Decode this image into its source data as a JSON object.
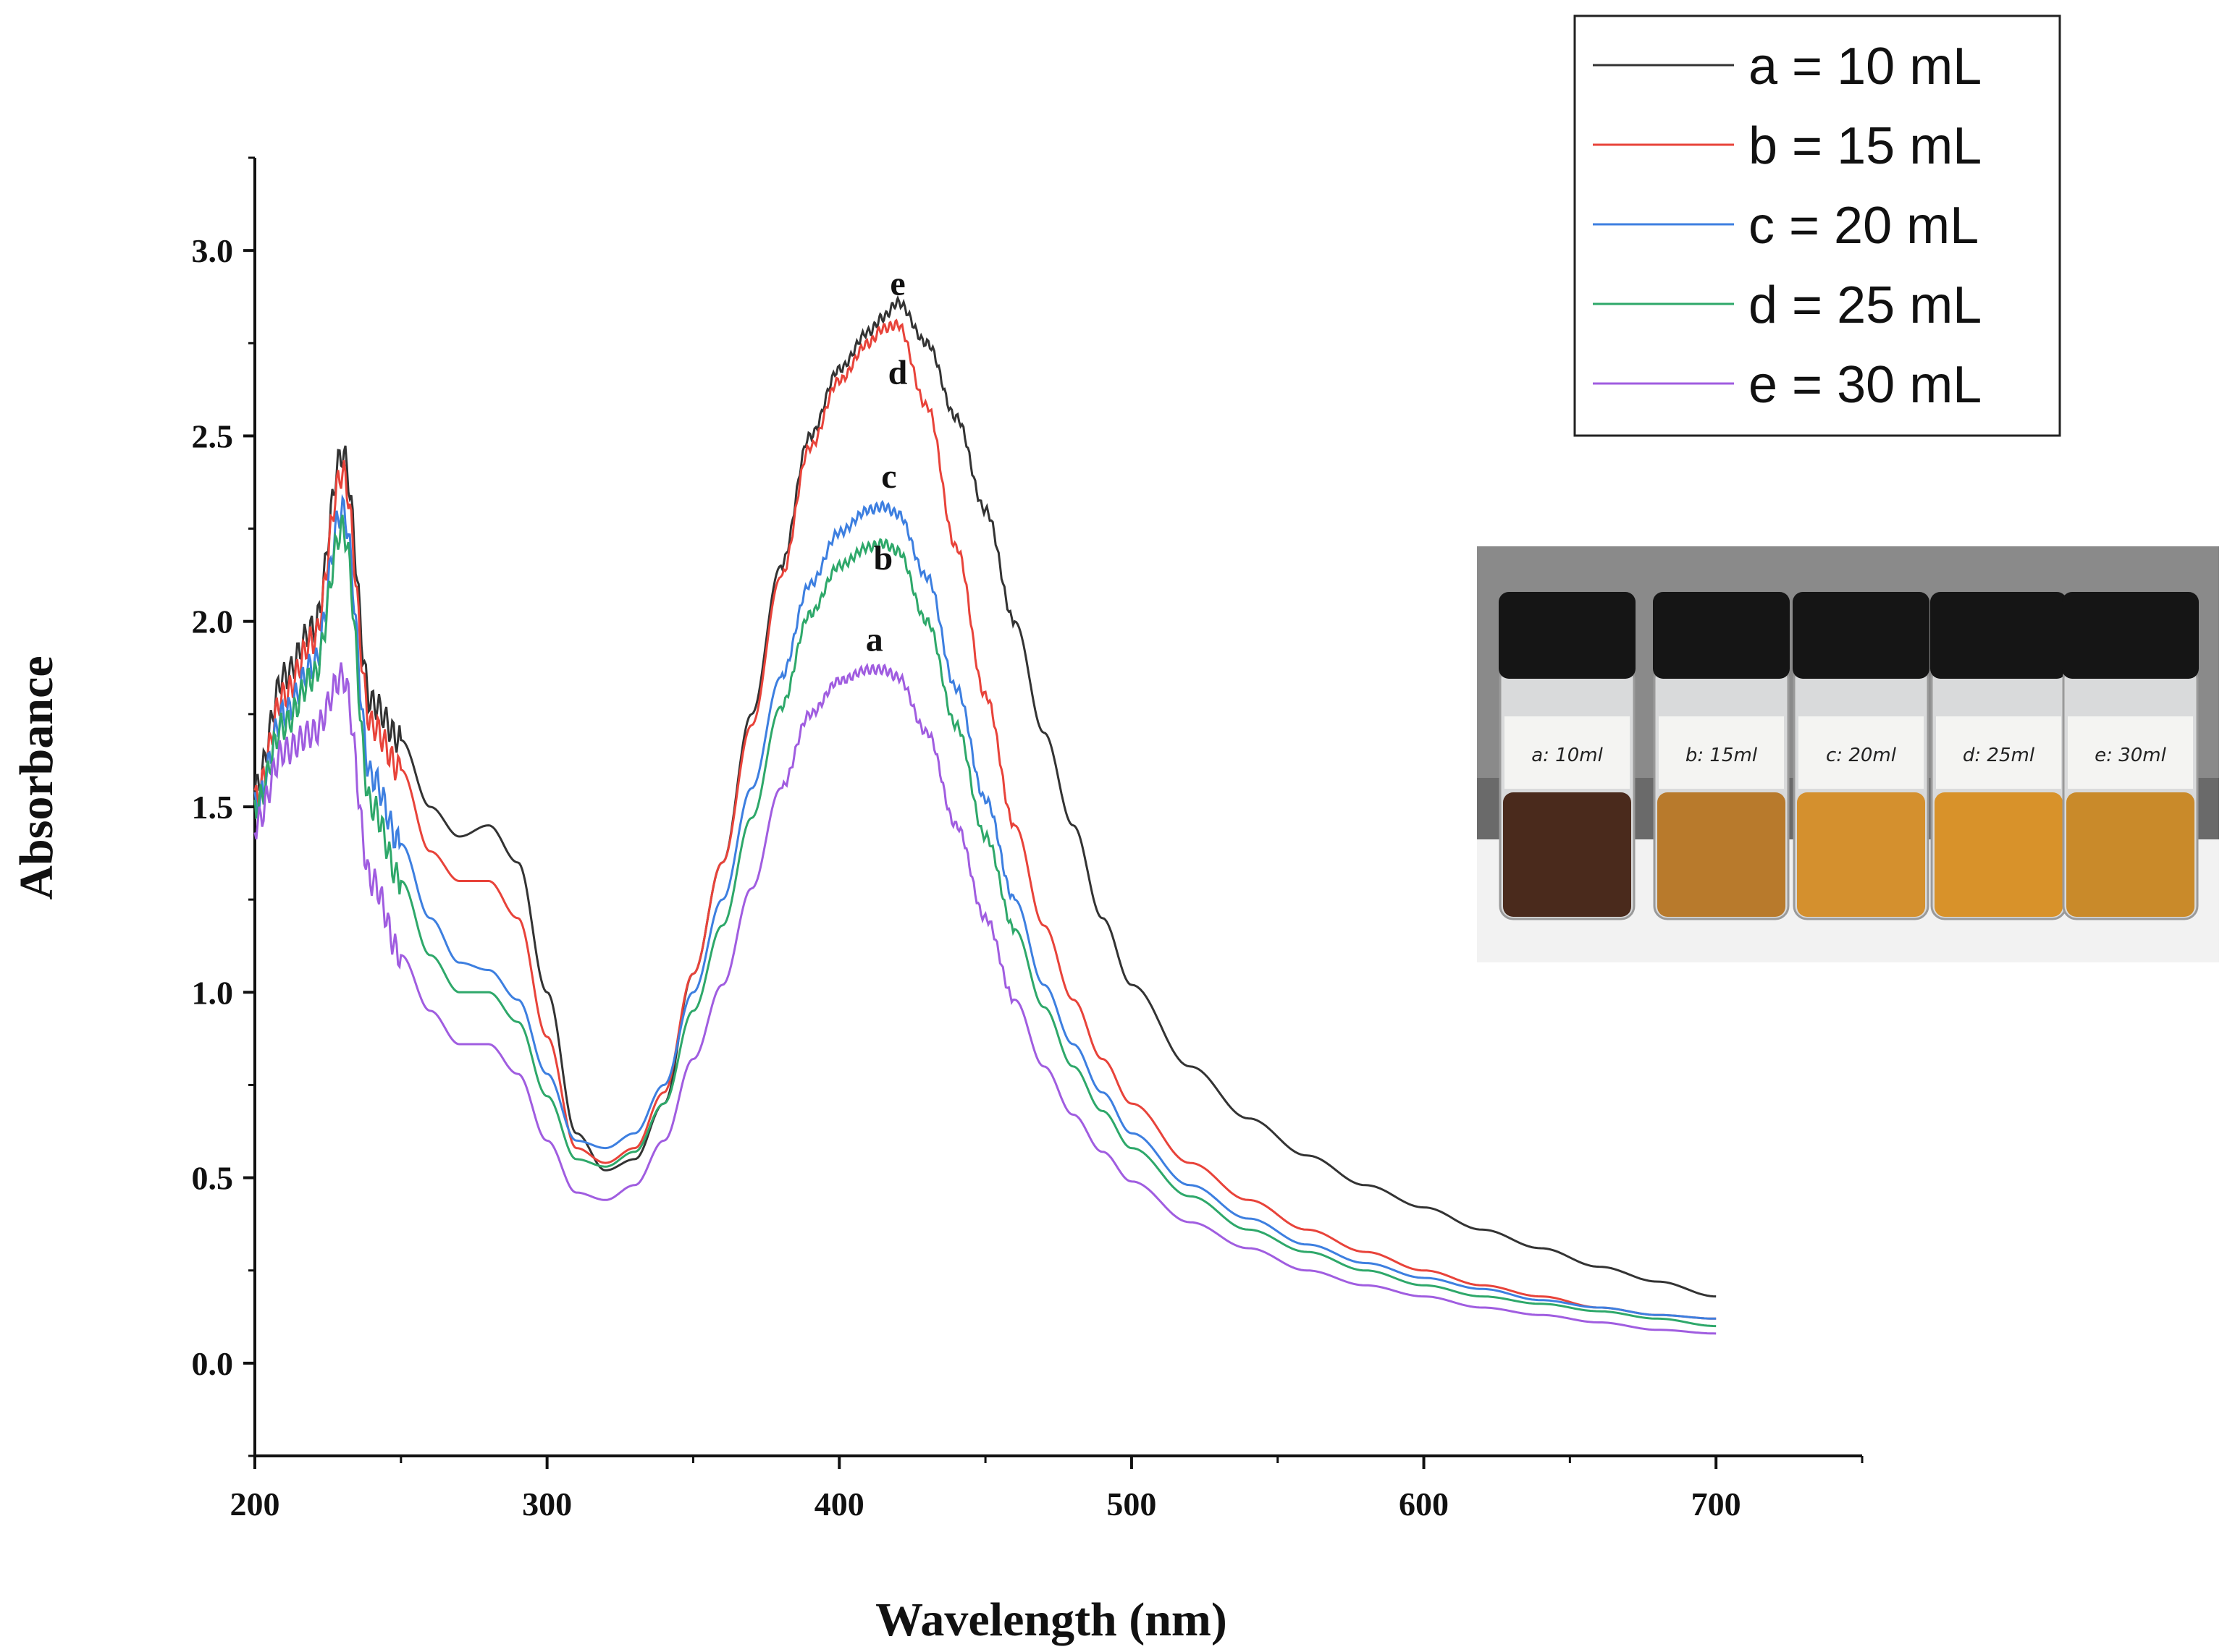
{
  "chart_data": {
    "type": "line",
    "title": "",
    "xlabel": "Wavelength (nm)",
    "ylabel": "Absorbance",
    "xlim": [
      200,
      750
    ],
    "ylim": [
      -0.25,
      3.25
    ],
    "x_ticks": [
      200,
      300,
      400,
      500,
      600,
      700
    ],
    "y_ticks": [
      0.0,
      0.5,
      1.0,
      1.5,
      2.0,
      2.5,
      3.0
    ],
    "x_tick_labels": [
      "200",
      "300",
      "400",
      "500",
      "600",
      "700"
    ],
    "y_tick_labels": [
      "0.0",
      "0.5",
      "1.0",
      "1.5",
      "2.0",
      "2.5",
      "3.0"
    ],
    "grid": false,
    "legend_position": "top-right",
    "x": [
      200,
      210,
      220,
      230,
      240,
      250,
      260,
      270,
      280,
      290,
      300,
      310,
      320,
      330,
      340,
      350,
      360,
      370,
      380,
      390,
      400,
      410,
      415,
      420,
      430,
      440,
      450,
      460,
      470,
      480,
      490,
      500,
      520,
      540,
      560,
      580,
      600,
      620,
      640,
      660,
      680,
      700
    ],
    "series": [
      {
        "name": "a = 10 mL",
        "color": "#333333",
        "values": [
          1.55,
          1.85,
          1.98,
          2.45,
          1.78,
          1.68,
          1.5,
          1.42,
          1.45,
          1.35,
          1.0,
          0.62,
          0.52,
          0.55,
          0.7,
          1.05,
          1.35,
          1.75,
          2.15,
          2.5,
          2.68,
          2.78,
          2.82,
          2.86,
          2.75,
          2.55,
          2.3,
          2.0,
          1.7,
          1.45,
          1.2,
          1.02,
          0.8,
          0.66,
          0.56,
          0.48,
          0.42,
          0.36,
          0.31,
          0.26,
          0.22,
          0.18
        ]
      },
      {
        "name": "b = 15 mL",
        "color": "#e8433a",
        "values": [
          1.52,
          1.8,
          1.95,
          2.4,
          1.72,
          1.6,
          1.38,
          1.3,
          1.3,
          1.2,
          0.88,
          0.58,
          0.54,
          0.58,
          0.73,
          1.05,
          1.35,
          1.72,
          2.12,
          2.47,
          2.65,
          2.75,
          2.79,
          2.8,
          2.58,
          2.2,
          1.8,
          1.45,
          1.18,
          0.98,
          0.82,
          0.7,
          0.54,
          0.44,
          0.36,
          0.3,
          0.25,
          0.21,
          0.18,
          0.15,
          0.13,
          0.12
        ]
      },
      {
        "name": "c = 20 mL",
        "color": "#3d7fe0",
        "values": [
          1.5,
          1.75,
          1.88,
          2.3,
          1.58,
          1.4,
          1.2,
          1.08,
          1.06,
          0.98,
          0.78,
          0.6,
          0.58,
          0.62,
          0.75,
          1.0,
          1.25,
          1.55,
          1.85,
          2.1,
          2.24,
          2.3,
          2.31,
          2.29,
          2.12,
          1.82,
          1.52,
          1.25,
          1.02,
          0.86,
          0.73,
          0.62,
          0.48,
          0.39,
          0.32,
          0.27,
          0.23,
          0.2,
          0.17,
          0.15,
          0.13,
          0.12
        ]
      },
      {
        "name": "d = 25 mL",
        "color": "#2ea86a",
        "values": [
          1.5,
          1.72,
          1.85,
          2.25,
          1.5,
          1.3,
          1.1,
          1.0,
          1.0,
          0.92,
          0.72,
          0.55,
          0.53,
          0.57,
          0.7,
          0.95,
          1.18,
          1.47,
          1.77,
          2.02,
          2.15,
          2.2,
          2.21,
          2.19,
          2.0,
          1.72,
          1.42,
          1.17,
          0.96,
          0.8,
          0.68,
          0.58,
          0.45,
          0.36,
          0.3,
          0.25,
          0.21,
          0.18,
          0.16,
          0.14,
          0.12,
          0.1
        ]
      },
      {
        "name": "e = 30 mL",
        "color": "#a05de0",
        "values": [
          1.45,
          1.65,
          1.7,
          1.85,
          1.3,
          1.1,
          0.95,
          0.86,
          0.86,
          0.78,
          0.6,
          0.46,
          0.44,
          0.48,
          0.6,
          0.82,
          1.02,
          1.28,
          1.55,
          1.75,
          1.84,
          1.87,
          1.87,
          1.85,
          1.7,
          1.45,
          1.2,
          0.98,
          0.8,
          0.67,
          0.57,
          0.49,
          0.38,
          0.31,
          0.25,
          0.21,
          0.18,
          0.15,
          0.13,
          0.11,
          0.09,
          0.08
        ]
      }
    ],
    "annotations": [
      {
        "text": "e",
        "x": 420,
        "y": 2.88
      },
      {
        "text": "d",
        "x": 420,
        "y": 2.64
      },
      {
        "text": "c",
        "x": 417,
        "y": 2.36
      },
      {
        "text": "b",
        "x": 415,
        "y": 2.14
      },
      {
        "text": "a",
        "x": 412,
        "y": 1.92
      }
    ]
  },
  "inset_photo": {
    "vial_labels": [
      "a: 10ml",
      "b: 15ml",
      "c: 20ml",
      "d: 25ml",
      "e: 30ml"
    ],
    "liquid_colors": [
      "#4a2a1c",
      "#b87a2c",
      "#d4902e",
      "#d8922a",
      "#c98a2a"
    ],
    "cap_color": "#151515"
  }
}
